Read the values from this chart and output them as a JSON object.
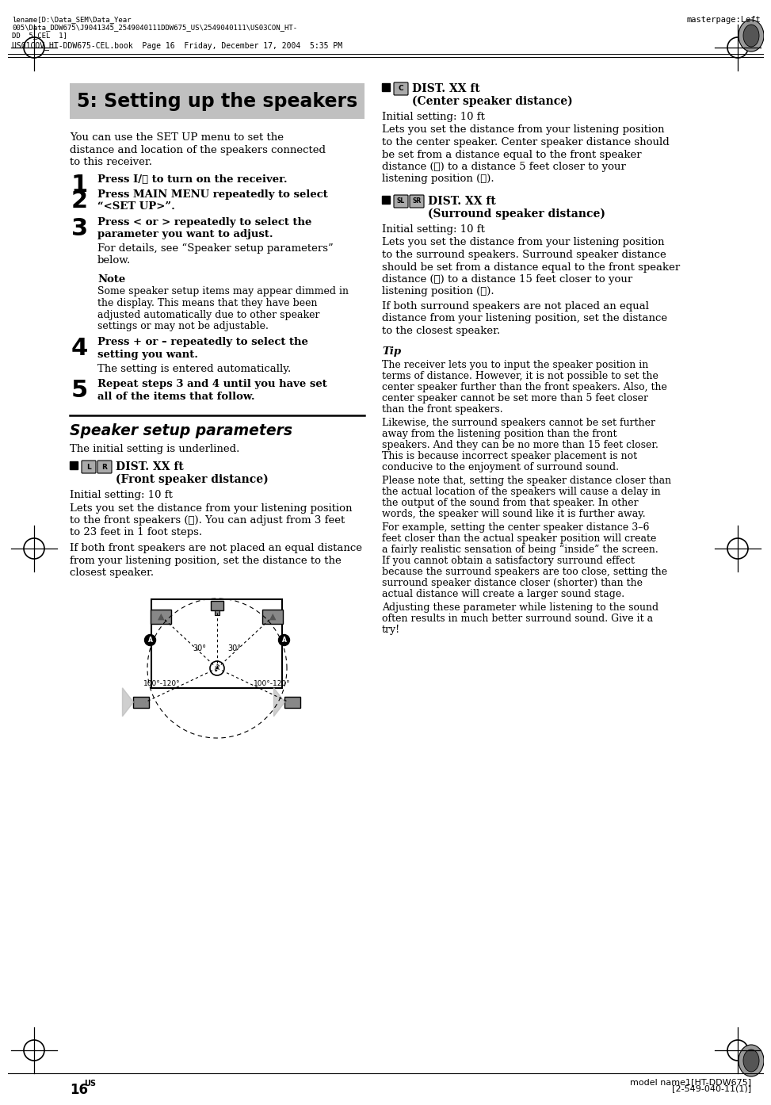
{
  "page_bg": "#ffffff",
  "header_text1": "lename[D:\\Data_SEM\\Data_Year",
  "header_text2": "005\\Data_DDW675\\J9041345_2549040111DDW675_US\\2549040111\\US03CON_HT-",
  "header_text3": "DD  5_CEL  1]",
  "header_text4": "US01COV_HT-DDW675-CEL.book  Page 16  Friday, December 17, 2004  5:35 PM",
  "masterpage": "masterpage:Left",
  "title_text": "5: Setting up the speakers",
  "intro_text": [
    "You can use the SET UP menu to set the",
    "distance and location of the speakers connected",
    "to this receiver."
  ],
  "step1_bold": "Press I/⏽ to turn on the receiver.",
  "step2_bold": [
    "Press MAIN MENU repeatedly to select",
    "“<SET UP>”."
  ],
  "step3_bold": [
    "Press < or > repeatedly to select the",
    "parameter you want to adjust."
  ],
  "step3_normal": [
    "For details, see “Speaker setup parameters”",
    "below."
  ],
  "note_label": "Note",
  "note_text": [
    "Some speaker setup items may appear dimmed in",
    "the display. This means that they have been",
    "adjusted automatically due to other speaker",
    "settings or may not be adjustable."
  ],
  "step4_bold": [
    "Press + or – repeatedly to select the",
    "setting you want."
  ],
  "step4_normal": "The setting is entered automatically.",
  "step5_bold": [
    "Repeat steps 3 and 4 until you have set",
    "all of the items that follow."
  ],
  "section2_title": "Speaker setup parameters",
  "section2_intro": "The initial setting is underlined.",
  "front_dist_init": "Initial setting: 10 ft",
  "front_dist_text": [
    "Lets you set the distance from your listening position",
    "to the front speakers (Ⓐ). You can adjust from 3 feet",
    "to 23 feet in 1 foot steps."
  ],
  "front_dist_text2": [
    "If both front speakers are not placed an equal distance",
    "from your listening position, set the distance to the",
    "closest speaker."
  ],
  "right_col_init1": "Initial setting: 10 ft",
  "right_col_text1": [
    "Lets you set the distance from your listening position",
    "to the center speaker. Center speaker distance should",
    "be set from a distance equal to the front speaker",
    "distance (Ⓐ) to a distance 5 feet closer to your",
    "listening position (Ⓑ)."
  ],
  "right_col_init2": "Initial setting: 10 ft",
  "right_col_text2": [
    "Lets you set the distance from your listening position",
    "to the surround speakers. Surround speaker distance",
    "should be set from a distance equal to the front speaker",
    "distance (Ⓐ) to a distance 15 feet closer to your",
    "listening position (Ⓕ)."
  ],
  "right_col_text2b": [
    "If both surround speakers are not placed an equal",
    "distance from your listening position, set the distance",
    "to the closest speaker."
  ],
  "tip_label": "Tip",
  "tip_paras": [
    [
      "The receiver lets you to input the speaker position in",
      "terms of distance. However, it is not possible to set the",
      "center speaker further than the front speakers. Also, the",
      "center speaker cannot be set more than 5 feet closer",
      "than the front speakers."
    ],
    [
      "Likewise, the surround speakers cannot be set further",
      "away from the listening position than the front",
      "speakers. And they can be no more than 15 feet closer.",
      "This is because incorrect speaker placement is not",
      "conducive to the enjoyment of surround sound."
    ],
    [
      "Please note that, setting the speaker distance closer than",
      "the actual location of the speakers will cause a delay in",
      "the output of the sound from that speaker. In other",
      "words, the speaker will sound like it is further away."
    ],
    [
      "For example, setting the center speaker distance 3–6",
      "feet closer than the actual speaker position will create",
      "a fairly realistic sensation of being “inside” the screen.",
      "If you cannot obtain a satisfactory surround effect",
      "because the surround speakers are too close, setting the",
      "surround speaker distance closer (shorter) than the",
      "actual distance will create a larger sound stage."
    ],
    [
      "Adjusting these parameter while listening to the sound",
      "often results in much better surround sound. Give it a",
      "try!"
    ]
  ],
  "page_num": "16",
  "page_num_sup": "US",
  "footer_model": "model name1[HT-DDW675]",
  "footer_code": "[2-549-040-11(1)]"
}
